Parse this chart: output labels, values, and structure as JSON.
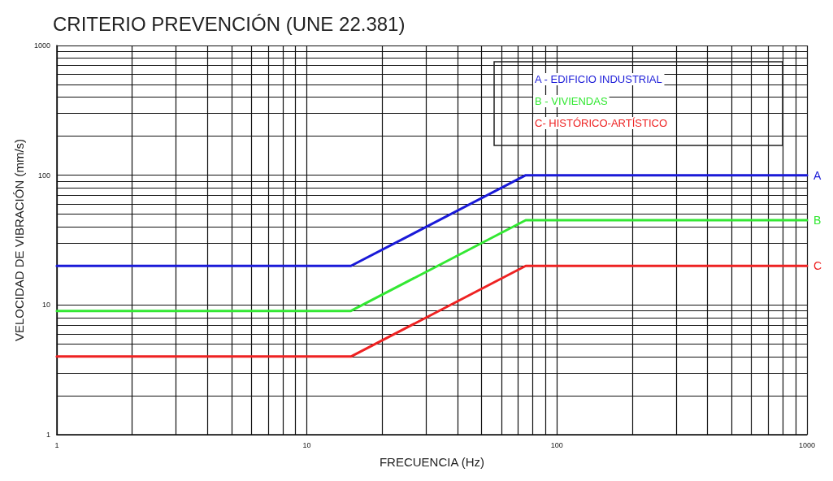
{
  "chart_data": {
    "type": "line",
    "title": "CRITERIO PREVENCIÓN (UNE 22.381)",
    "xlabel": "FRECUENCIA (Hz)",
    "ylabel": "VELOCIDAD DE VIBRACIÓN (mm/s)",
    "log": "xy",
    "grid": true,
    "legend": "top right",
    "marker": "none",
    "line_style": "solid",
    "xlim": [
      1,
      1000
    ],
    "ylim": [
      1,
      1000
    ],
    "xticks": [
      1,
      {
        "value": 2,
        "label": null
      },
      {
        "value": 3,
        "label": null
      },
      {
        "value": 4,
        "label": null
      },
      {
        "value": 5,
        "label": null
      },
      {
        "value": 6,
        "label": null
      },
      {
        "value": 7,
        "label": null
      },
      {
        "value": 8,
        "label": null
      },
      {
        "value": 9,
        "label": null
      },
      10,
      {
        "value": 20,
        "label": null
      },
      {
        "value": 30,
        "label": null
      },
      {
        "value": 40,
        "label": null
      },
      {
        "value": 50,
        "label": null
      },
      {
        "value": 60,
        "label": null
      },
      {
        "value": 70,
        "label": null
      },
      {
        "value": 80,
        "label": null
      },
      {
        "value": 90,
        "label": null
      },
      100,
      {
        "value": 200,
        "label": null
      },
      {
        "value": 300,
        "label": null
      },
      {
        "value": 400,
        "label": null
      },
      {
        "value": 500,
        "label": null
      },
      {
        "value": 600,
        "label": null
      },
      {
        "value": 700,
        "label": null
      },
      {
        "value": 800,
        "label": null
      },
      {
        "value": 900,
        "label": null
      },
      1000
    ],
    "yticks": [
      1,
      {
        "value": 2,
        "label": null
      },
      {
        "value": 3,
        "label": null
      },
      {
        "value": 4,
        "label": null
      },
      {
        "value": 5,
        "label": null
      },
      {
        "value": 6,
        "label": null
      },
      {
        "value": 7,
        "label": null
      },
      {
        "value": 8,
        "label": null
      },
      {
        "value": 9,
        "label": null
      },
      10,
      {
        "value": 20,
        "label": null
      },
      {
        "value": 30,
        "label": null
      },
      {
        "value": 40,
        "label": null
      },
      {
        "value": 50,
        "label": null
      },
      {
        "value": 60,
        "label": null
      },
      {
        "value": 70,
        "label": null
      },
      {
        "value": 80,
        "label": null
      },
      {
        "value": 90,
        "label": null
      },
      100,
      {
        "value": 200,
        "label": null
      },
      {
        "value": 300,
        "label": null
      },
      {
        "value": 400,
        "label": null
      },
      {
        "value": 500,
        "label": null
      },
      {
        "value": 600,
        "label": null
      },
      {
        "value": 700,
        "label": null
      },
      {
        "value": 800,
        "label": null
      },
      {
        "value": 900,
        "label": null
      },
      1000
    ],
    "x": [
      1,
      15,
      75,
      1000
    ],
    "series": [
      {
        "name": "A - EDIFICIO INDUSTRIAL",
        "color": "#1a1ad8",
        "values": [
          20,
          20,
          100,
          100
        ]
      },
      {
        "name": "B - VIVIENDAS",
        "color": "#33e833",
        "values": [
          9,
          9,
          45,
          45
        ]
      },
      {
        "name": "C- HISTÓRICO-ARTÍSTICO",
        "color": "#ee2222",
        "values": [
          4,
          4,
          20,
          20
        ]
      }
    ],
    "annotations": [
      "A",
      "B",
      "C"
    ]
  }
}
